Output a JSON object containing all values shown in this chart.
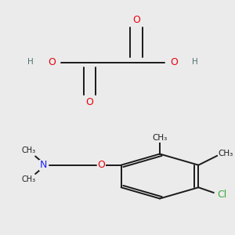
{
  "bg_color": "#ebebeb",
  "bond_color": "#1a1a1a",
  "o_color": "#e8000d",
  "n_color": "#2020ff",
  "cl_color": "#3aaa3a",
  "h_color": "#507070",
  "font_size_atom": 9,
  "font_size_small": 7.5,
  "fig_width": 3.0,
  "fig_height": 3.0,
  "dpi": 100
}
